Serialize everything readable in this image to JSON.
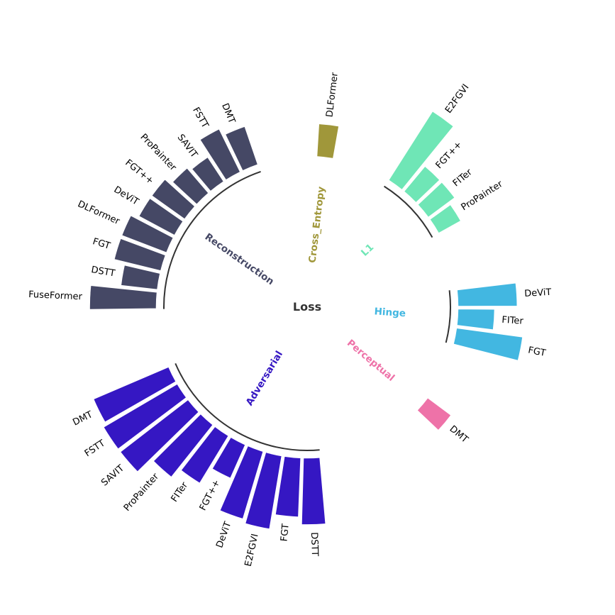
{
  "chart_data": {
    "type": "circular_bar",
    "title": "Loss",
    "value_range": [
      0,
      12
    ],
    "groups": [
      {
        "name": "Adversarial",
        "color": "#3517C3",
        "categories": [
          "DMT",
          "FSTT",
          "SAVIT",
          "ProPainter",
          "FITer",
          "FGT++",
          "DeViT",
          "E2FGVI",
          "FGT",
          "DSTT"
        ],
        "values": [
          11,
          11.5,
          11.5,
          9,
          7.5,
          5,
          9.5,
          10,
          8,
          9
        ]
      },
      {
        "name": "Reconstruction",
        "color": "#454865",
        "categories": [
          "DMT",
          "FSTT",
          "SAVIT",
          "ProPainter",
          "FGT++",
          "DeViT",
          "DLFormer",
          "FGT",
          "DSTT",
          "FuseFormer"
        ],
        "values": [
          5.5,
          6.5,
          4,
          4.5,
          5.5,
          5.5,
          6.5,
          6.5,
          5,
          9
        ]
      },
      {
        "name": "Cross_Entropy",
        "color": "#A0973A",
        "categories": [
          "DLFormer"
        ],
        "values": [
          4.5
        ]
      },
      {
        "name": "L1",
        "color": "#6FE6B6",
        "categories": [
          "ProPainter",
          "FITer",
          "FGT++",
          "E2FGVI"
        ],
        "values": [
          3.5,
          4.5,
          4.5,
          11
        ]
      },
      {
        "name": "Hinge",
        "color": "#42B7E1",
        "categories": [
          "FGT",
          "FITer",
          "DeViT"
        ],
        "values": [
          9,
          5,
          8
        ]
      },
      {
        "name": "Perceptual",
        "color": "#EE72A8",
        "categories": [
          "DMT"
        ],
        "values": [
          4
        ]
      }
    ],
    "legend": "none",
    "grid": false
  }
}
